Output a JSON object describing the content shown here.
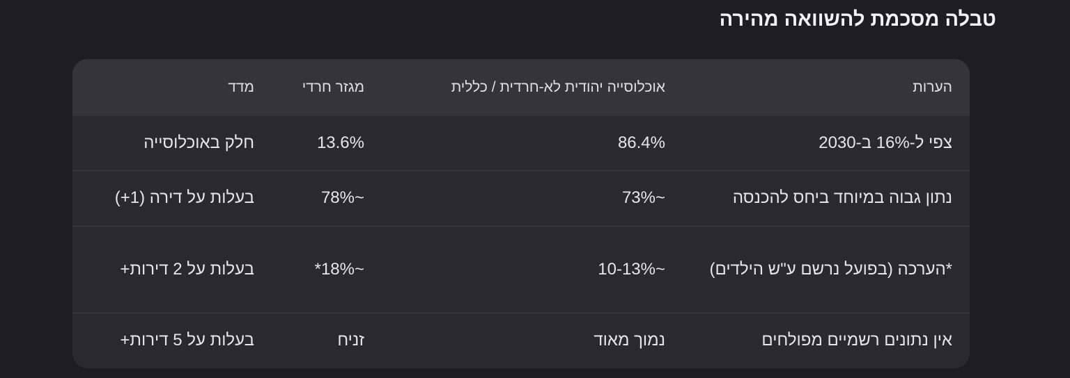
{
  "header": {
    "title": "טבלה מסכמת להשוואה מהירה"
  },
  "table": {
    "columns": [
      "מדד",
      "מגזר חרדי",
      "אוכלוסייה יהודית לא-חרדית / כללית",
      "הערות"
    ],
    "rows": [
      [
        "חלק באוכלוסייה",
        "13.6%",
        "86.4%",
        "צפי ל-16% ב-2030"
      ],
      [
        "בעלות על דירה (1+)",
        "~78%",
        "~73%",
        "נתון גבוה במיוחד ביחס להכנסה"
      ],
      [
        "בעלות על 2 דירות+",
        "~18%*",
        "~10-13%",
        "*הערכה (בפועל נרשם ע\"ש הילדים)"
      ],
      [
        "בעלות על 5 דירות+",
        "זניח",
        "נמוך מאוד",
        "אין נתונים רשמיים מפולחים"
      ]
    ]
  }
}
